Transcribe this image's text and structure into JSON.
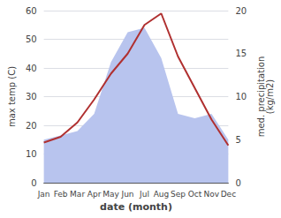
{
  "chart_data": {
    "type": "line",
    "categories": [
      "Jan",
      "Feb",
      "Mar",
      "Apr",
      "May",
      "Jun",
      "Jul",
      "Aug",
      "Sep",
      "Oct",
      "Nov",
      "Dec"
    ],
    "series": [
      {
        "type": "area",
        "axis": "y2",
        "color": "#b8c4ee",
        "values": [
          5.0,
          5.5,
          6.0,
          8.0,
          14.0,
          17.5,
          18.0,
          14.5,
          8.0,
          7.5,
          8.0,
          5.0
        ]
      },
      {
        "type": "line",
        "color": "#b03030",
        "values": [
          14,
          16,
          21,
          29,
          38,
          45,
          55,
          59,
          44,
          33,
          22,
          13
        ]
      }
    ],
    "xlabel": "date (month)",
    "ylabel": "max temp (C)",
    "y2label": "med. precipitation\n(kg/m2)",
    "ylim": [
      0,
      60
    ],
    "yticks": [
      0,
      10,
      20,
      30,
      40,
      50,
      60
    ],
    "y2lim": [
      0,
      20
    ],
    "y2ticks": [
      0,
      5,
      10,
      15,
      20
    ],
    "grid": true
  }
}
